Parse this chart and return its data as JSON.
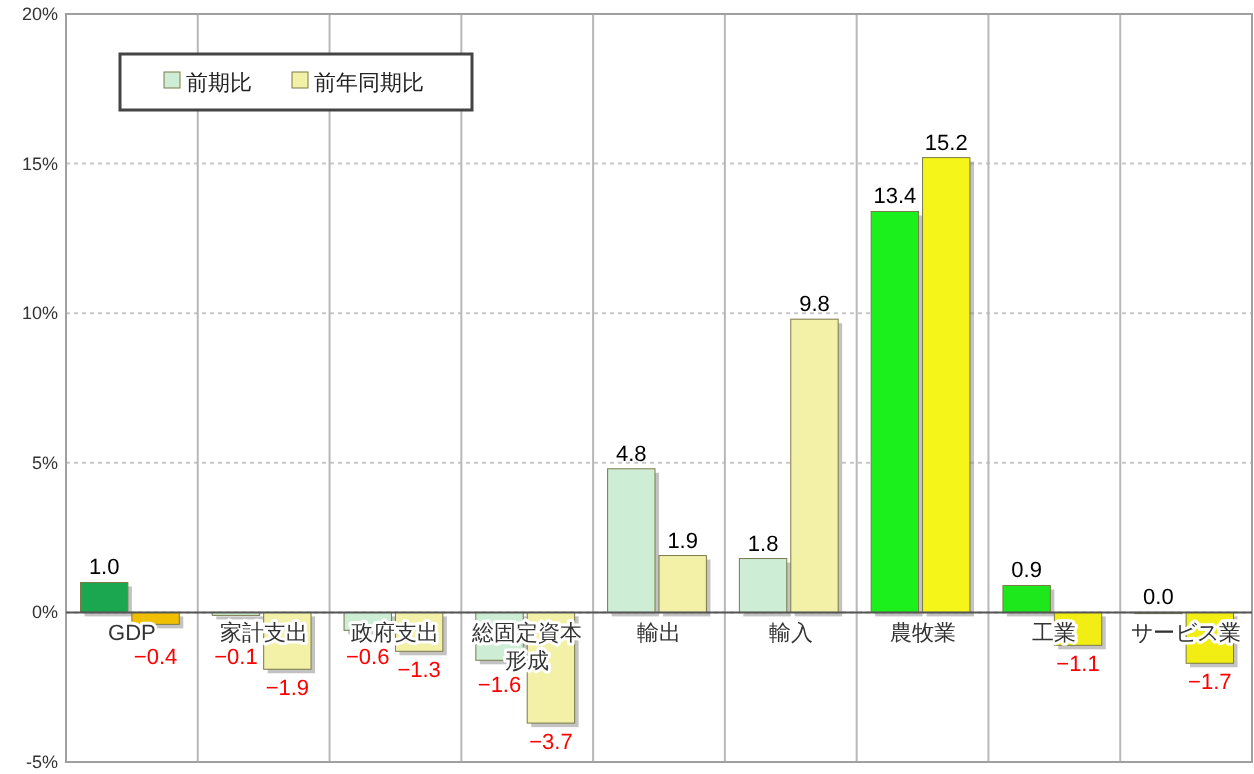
{
  "chart_data": {
    "type": "bar",
    "categories": [
      "GDP",
      "家計支出",
      "政府支出",
      "総固定資本形成",
      "輸出",
      "輸入",
      "農牧業",
      "工業",
      "サービス業"
    ],
    "series": [
      {
        "name": "前期比",
        "color": "#cdeed5",
        "colors": [
          "#1aa750",
          "#cdeed5",
          "#cdeed5",
          "#cdeed5",
          "#cdeed5",
          "#cdeed5",
          "#1cf01c",
          "#1ce81c",
          "#1ce81c"
        ],
        "values": [
          1.0,
          -0.1,
          -0.6,
          -1.6,
          4.8,
          1.8,
          13.4,
          0.9,
          0.0
        ],
        "value_labels": [
          "1.0",
          "−0.1",
          "−0.6",
          "−1.6",
          "4.8",
          "1.8",
          "13.4",
          "0.9",
          "0.0"
        ]
      },
      {
        "name": "前年同期比",
        "color": "#f3f0a8",
        "colors": [
          "#f0c000",
          "#f3f0a8",
          "#f3f0a8",
          "#f3f0a8",
          "#f3f0a8",
          "#f3f0a8",
          "#f5f51a",
          "#f2ee14",
          "#f2ee14"
        ],
        "values": [
          -0.4,
          -1.9,
          -1.3,
          -3.7,
          1.9,
          9.8,
          15.2,
          -1.1,
          -1.7
        ],
        "value_labels": [
          "−0.4",
          "−1.9",
          "−1.3",
          "−3.7",
          "1.9",
          "9.8",
          "15.2",
          "−1.1",
          "−1.7"
        ]
      }
    ],
    "ylim": [
      -5,
      20
    ],
    "yticks": [
      {
        "value": -5,
        "label": "-5%"
      },
      {
        "value": 0,
        "label": "0%"
      },
      {
        "value": 5,
        "label": "5%"
      },
      {
        "value": 10,
        "label": "10%"
      },
      {
        "value": 15,
        "label": "15%"
      },
      {
        "value": 20,
        "label": "20%"
      }
    ],
    "grid": true,
    "legend": "top left"
  }
}
